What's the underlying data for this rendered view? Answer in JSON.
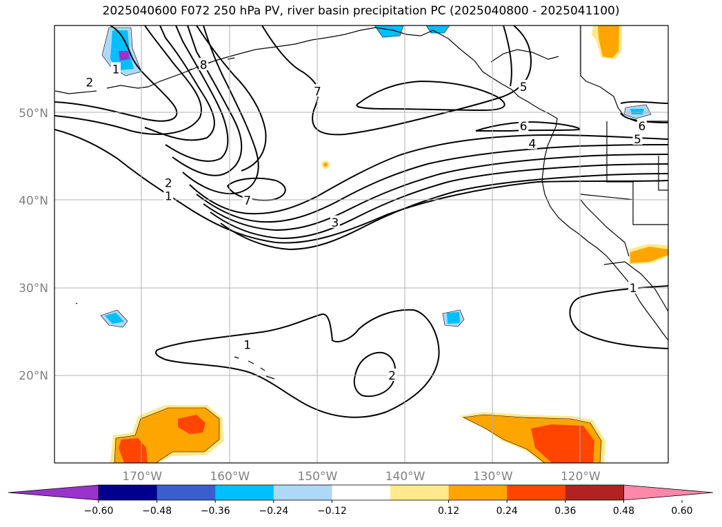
{
  "title": "2025040600 F072 250 hPa PV, river basin precipitation PC (2025040800 - 2025041100)",
  "map": {
    "lon_range": [
      -180,
      -110
    ],
    "lat_range": [
      10,
      60
    ],
    "lat_ticks": [
      {
        "lat": 50,
        "label": "50°N"
      },
      {
        "lat": 40,
        "label": "40°N"
      },
      {
        "lat": 30,
        "label": "30°N"
      },
      {
        "lat": 20,
        "label": "20°N"
      }
    ],
    "lon_ticks": [
      {
        "lon": -170,
        "label": "170°W"
      },
      {
        "lon": -160,
        "label": "160°W"
      },
      {
        "lon": -150,
        "label": "150°W"
      },
      {
        "lon": -140,
        "label": "140°W"
      },
      {
        "lon": -130,
        "label": "130°W"
      },
      {
        "lon": -120,
        "label": "120°W"
      }
    ],
    "gridlines": true,
    "contour_labels": [
      {
        "text": "2",
        "lon": -176,
        "lat": 53.5
      },
      {
        "text": "1",
        "lon": -173,
        "lat": 55
      },
      {
        "text": "8",
        "lon": -163,
        "lat": 55.5
      },
      {
        "text": "7",
        "lon": -150,
        "lat": 52.5
      },
      {
        "text": "2",
        "lon": -167,
        "lat": 42
      },
      {
        "text": "1",
        "lon": -167,
        "lat": 40.5
      },
      {
        "text": "7",
        "lon": -158,
        "lat": 40
      },
      {
        "text": "3",
        "lon": -148,
        "lat": 37.5
      },
      {
        "text": "6",
        "lon": -126.5,
        "lat": 48.5
      },
      {
        "text": "4",
        "lon": -125.5,
        "lat": 46.5
      },
      {
        "text": "5",
        "lon": -126.5,
        "lat": 53
      },
      {
        "text": "6",
        "lon": -113,
        "lat": 48.5
      },
      {
        "text": "5",
        "lon": -113.5,
        "lat": 47
      },
      {
        "text": "1",
        "lon": -158,
        "lat": 23.5
      },
      {
        "text": "2",
        "lon": -141.5,
        "lat": 20
      },
      {
        "text": "1",
        "lon": -114,
        "lat": 30
      }
    ]
  },
  "colorbar": {
    "labels": [
      "−0.60",
      "−0.48",
      "−0.36",
      "−0.24",
      "−0.12",
      "0.12",
      "0.24",
      "0.36",
      "0.48",
      "0.60"
    ],
    "colors": [
      "#9933cc",
      "#00008b",
      "#3a5fcd",
      "#00bfff",
      "#add8f6",
      "#ffffff",
      "#ffe98c",
      "#ffa500",
      "#ff4500",
      "#b22222",
      "#ff88aa"
    ]
  }
}
